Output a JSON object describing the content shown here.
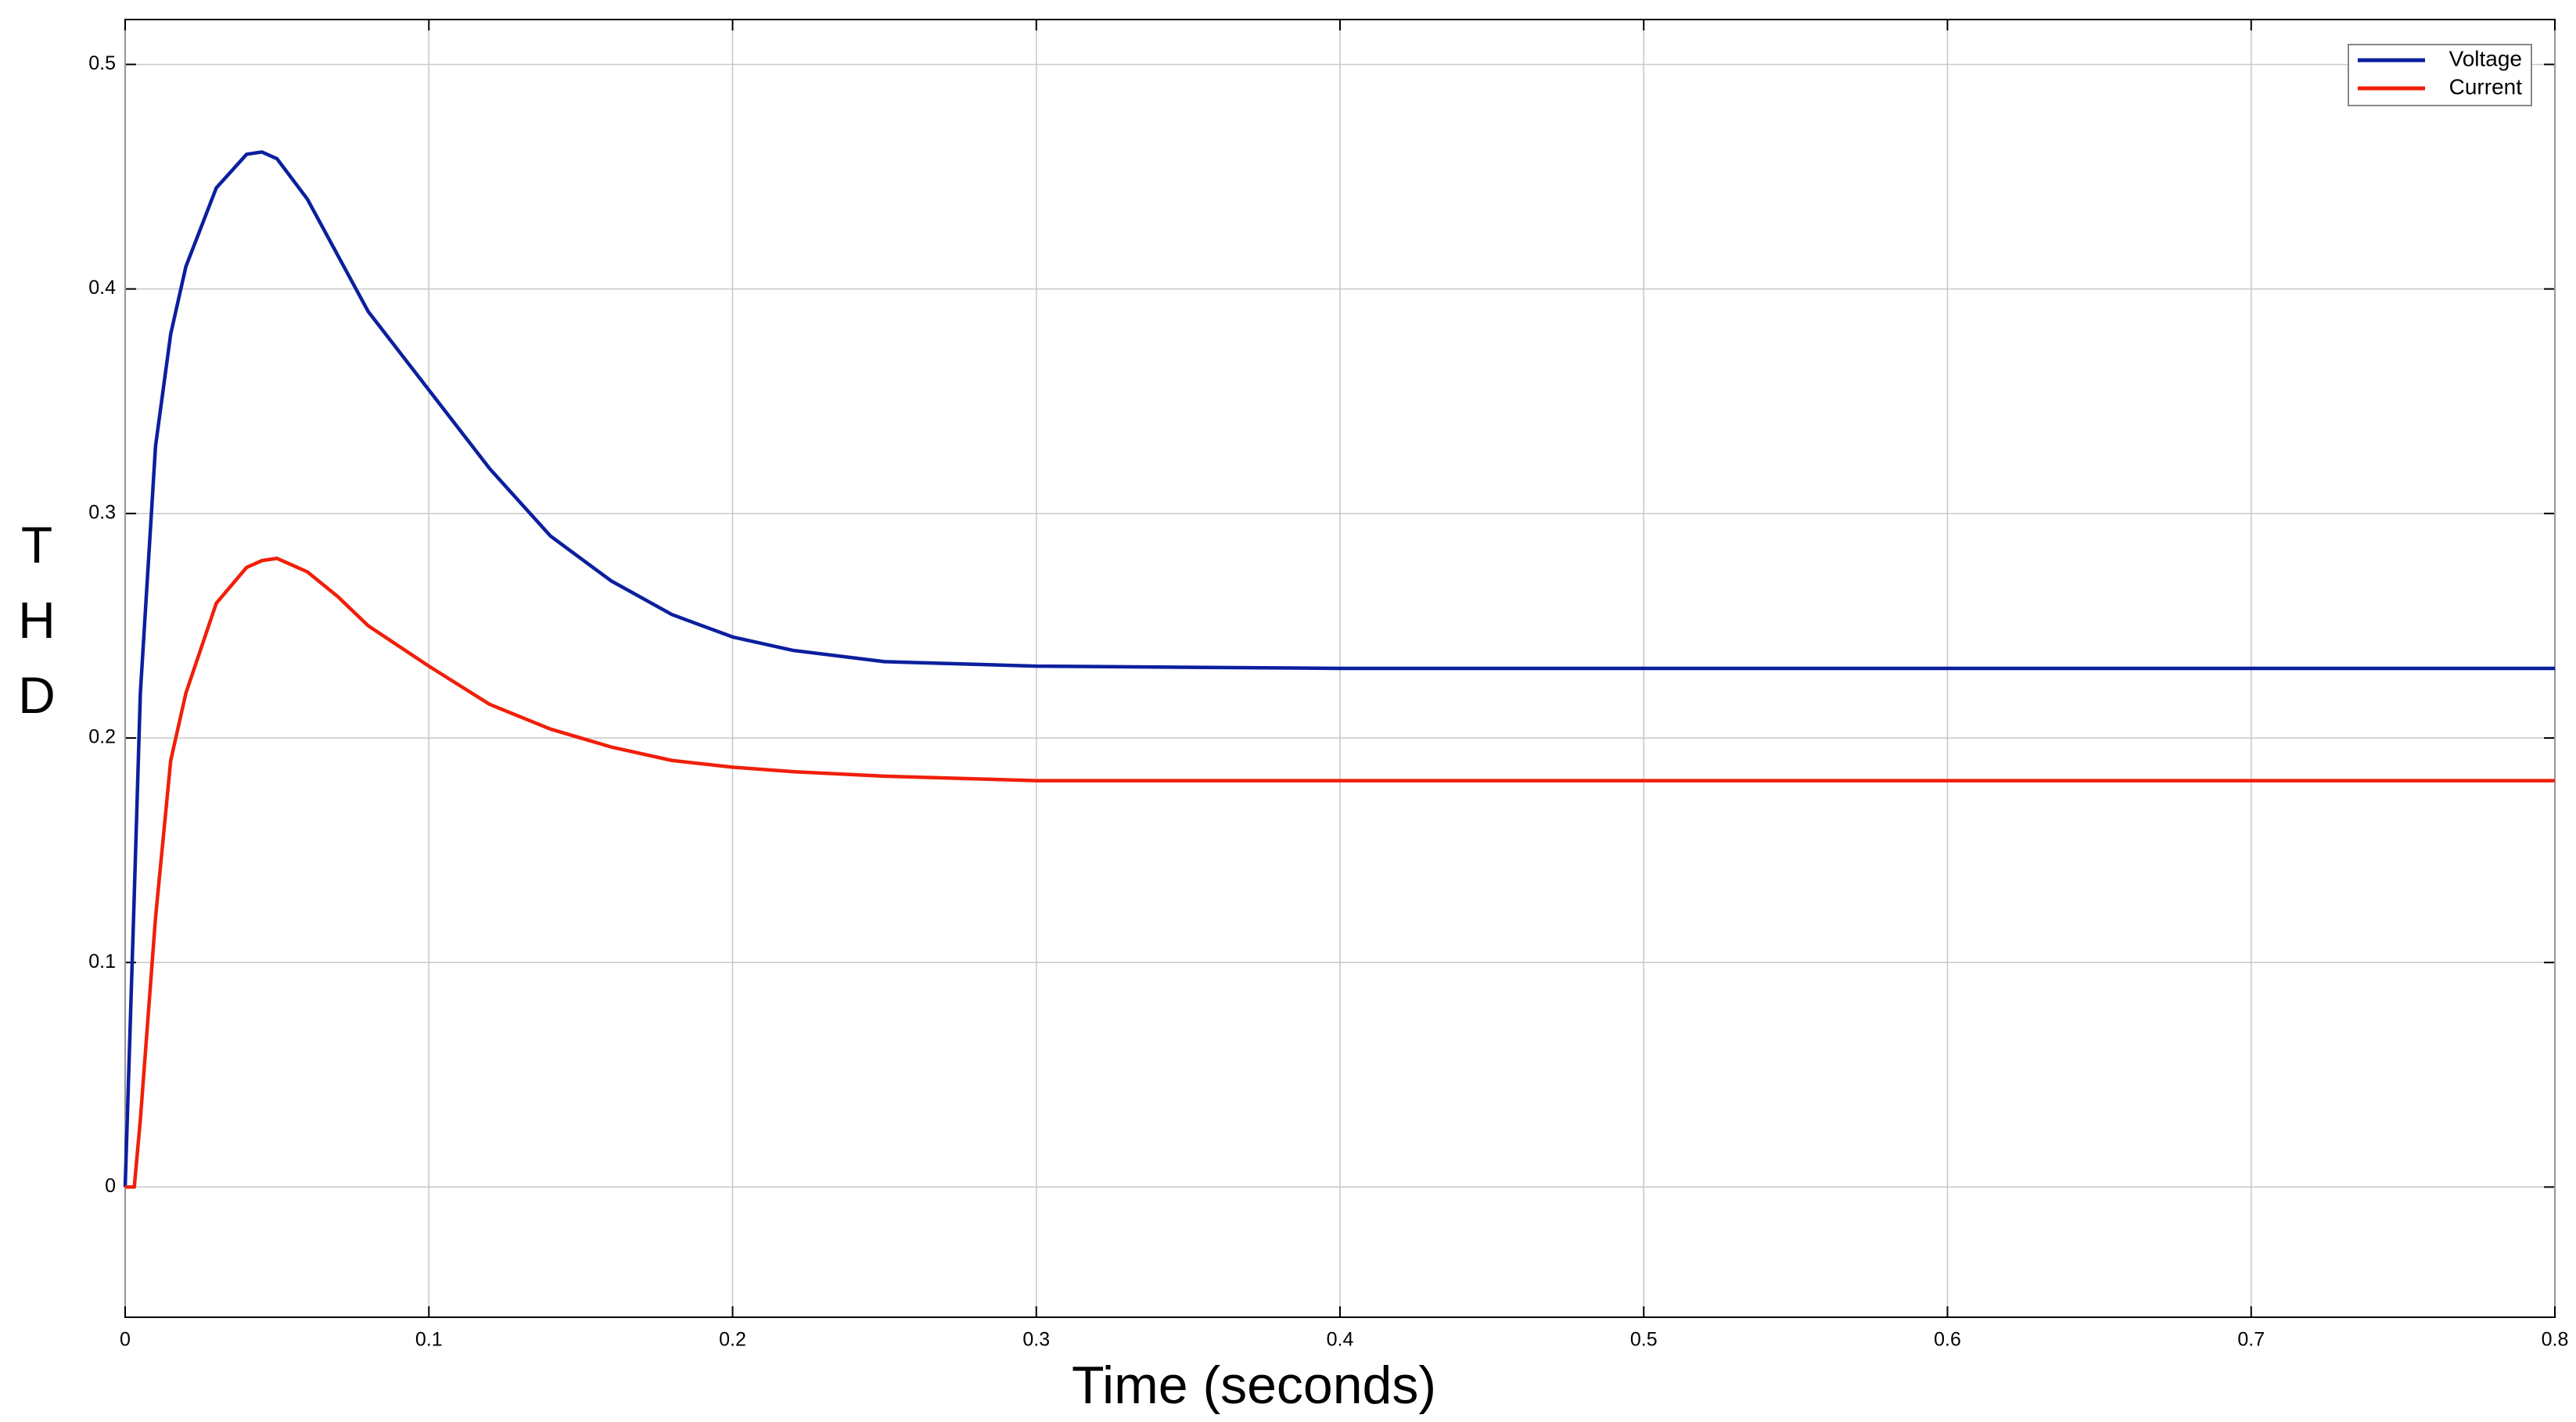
{
  "chart_data": {
    "type": "line",
    "x_label": "Time (seconds)",
    "y_label": "THD",
    "x": [
      0,
      0.003,
      0.005,
      0.01,
      0.015,
      0.02,
      0.03,
      0.04,
      0.045,
      0.05,
      0.06,
      0.07,
      0.08,
      0.1,
      0.12,
      0.14,
      0.16,
      0.18,
      0.2,
      0.22,
      0.25,
      0.3,
      0.4,
      0.6,
      0.8
    ],
    "series": [
      {
        "name": "Voltage",
        "color": "#0b1f9e",
        "values": [
          0,
          0.13,
          0.22,
          0.33,
          0.38,
          0.41,
          0.445,
          0.46,
          0.461,
          0.458,
          0.44,
          0.415,
          0.39,
          0.355,
          0.32,
          0.29,
          0.27,
          0.255,
          0.245,
          0.239,
          0.234,
          0.232,
          0.231,
          0.231,
          0.231
        ]
      },
      {
        "name": "Current",
        "color": "#f01f0a",
        "values": [
          0,
          0,
          0.03,
          0.12,
          0.19,
          0.22,
          0.26,
          0.276,
          0.279,
          0.28,
          0.274,
          0.263,
          0.25,
          0.232,
          0.215,
          0.204,
          0.196,
          0.19,
          0.187,
          0.185,
          0.183,
          0.181,
          0.181,
          0.181,
          0.181
        ]
      }
    ],
    "xlim": [
      0,
      0.8
    ],
    "xticks": [
      0,
      0.1,
      0.2,
      0.3,
      0.4,
      0.5,
      0.6,
      0.7,
      0.8
    ],
    "ylim": [
      -0.058,
      0.52
    ],
    "yticks": [
      0,
      0.1,
      0.2,
      0.3,
      0.4,
      0.5
    ],
    "grid": true,
    "legend": "upper right"
  }
}
